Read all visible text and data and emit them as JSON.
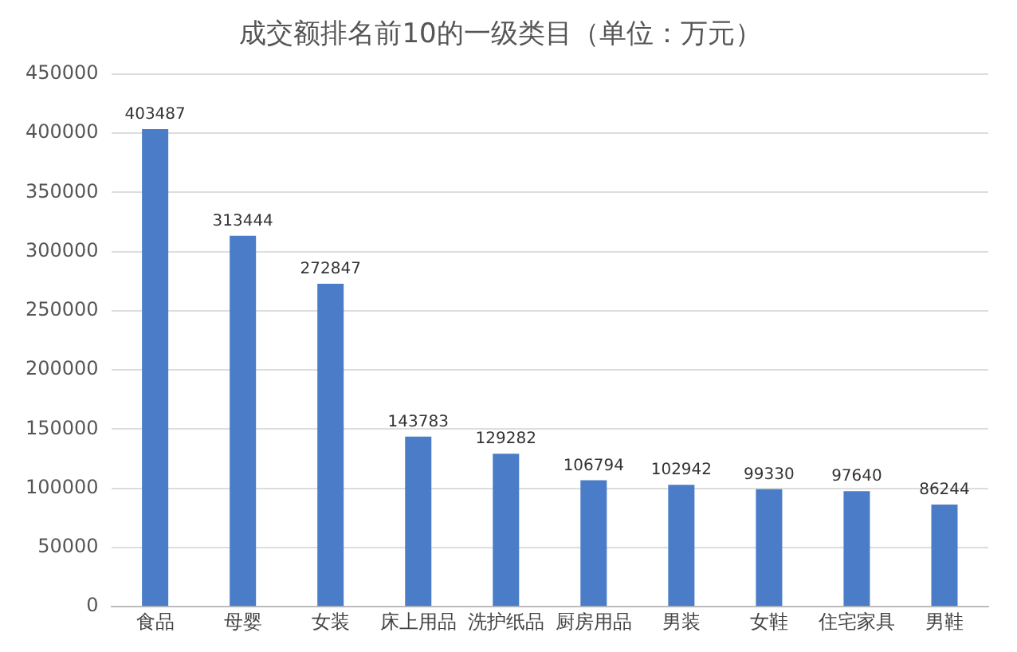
{
  "chart_data": {
    "type": "bar",
    "title": "成交额排名前10的一级类目（单位：万元）",
    "categories": [
      "食品",
      "母婴",
      "女装",
      "床上用品",
      "洗护纸品",
      "厨房用品",
      "男装",
      "女鞋",
      "住宅家具",
      "男鞋"
    ],
    "values": [
      403487,
      313444,
      272847,
      143783,
      129282,
      106794,
      102942,
      99330,
      97640,
      86244
    ],
    "color": "#4a7cc7",
    "ylim": [
      0,
      450000
    ],
    "yticks": [
      0,
      50000,
      100000,
      150000,
      200000,
      250000,
      300000,
      350000,
      400000,
      450000
    ],
    "grid": "y",
    "data_labels": true
  }
}
